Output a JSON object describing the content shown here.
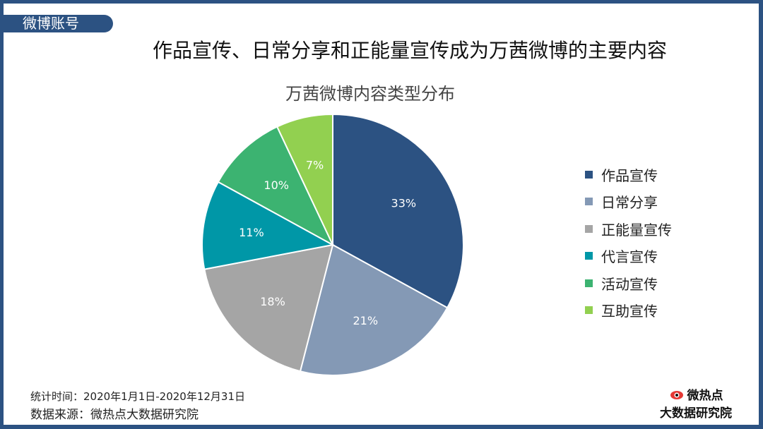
{
  "tag": "微博账号",
  "title": "作品宣传、日常分享和正能量宣传成为万茜微博的主要内容",
  "chart_data": {
    "type": "pie",
    "title": "万茜微博内容类型分布",
    "categories": [
      "作品宣传",
      "日常分享",
      "正能量宣传",
      "代言宣传",
      "活动宣传",
      "互助宣传"
    ],
    "values": [
      33,
      21,
      18,
      11,
      10,
      7
    ],
    "labels": [
      "33%",
      "21%",
      "18%",
      "11%",
      "10%",
      "7%"
    ],
    "colors": [
      "#2c5282",
      "#8499b5",
      "#a5a5a5",
      "#0097a7",
      "#3cb371",
      "#92d050"
    ],
    "legend_position": "right"
  },
  "footer": {
    "period": "统计时间：2020年1月1日-2020年12月31日",
    "source": "数据来源：微热点大数据研究院"
  },
  "logo": {
    "line1": "微热点",
    "line2": "大数据研究院"
  }
}
